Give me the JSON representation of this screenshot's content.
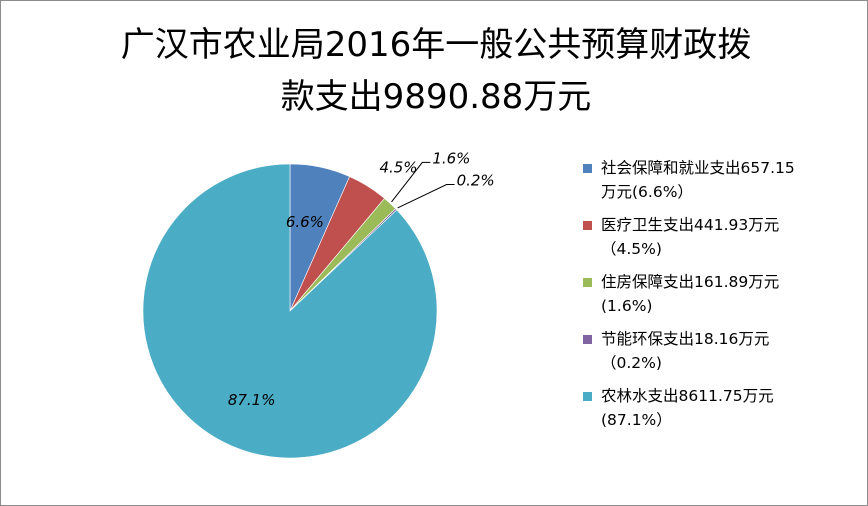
{
  "chart_data": {
    "type": "pie",
    "title_line1": "广汉市农业局2016年一般公共预算财政拨",
    "title_line2": "款支出9890.88万元",
    "slices": [
      {
        "name": "社会保障和就业支出",
        "value": 657.15,
        "percent_label": "6.6%",
        "legend_line1": "社会保障和就业支出657.15",
        "legend_line2": "万元(6.6%）",
        "color": "#4f81bd"
      },
      {
        "name": "医疗卫生支出",
        "value": 441.93,
        "percent_label": "4.5%",
        "legend_line1": "医疗卫生支出441.93万元",
        "legend_line2": "（4.5%)",
        "color": "#c0504d"
      },
      {
        "name": "住房保障支出",
        "value": 161.89,
        "percent_label": "1.6%",
        "legend_line1": "住房保障支出161.89万元",
        "legend_line2": "(1.6%)",
        "color": "#9bbb59"
      },
      {
        "name": "节能环保支出",
        "value": 18.16,
        "percent_label": "0.2%",
        "legend_line1": "节能环保支出18.16万元",
        "legend_line2": "（0.2%)",
        "color": "#8064a2"
      },
      {
        "name": "农林水支出",
        "value": 8611.75,
        "percent_label": "87.1%",
        "legend_line1": "农林水支出8611.75万元",
        "legend_line2": "(87.1%）",
        "color": "#4bacc6"
      }
    ],
    "legend_position": "right"
  }
}
